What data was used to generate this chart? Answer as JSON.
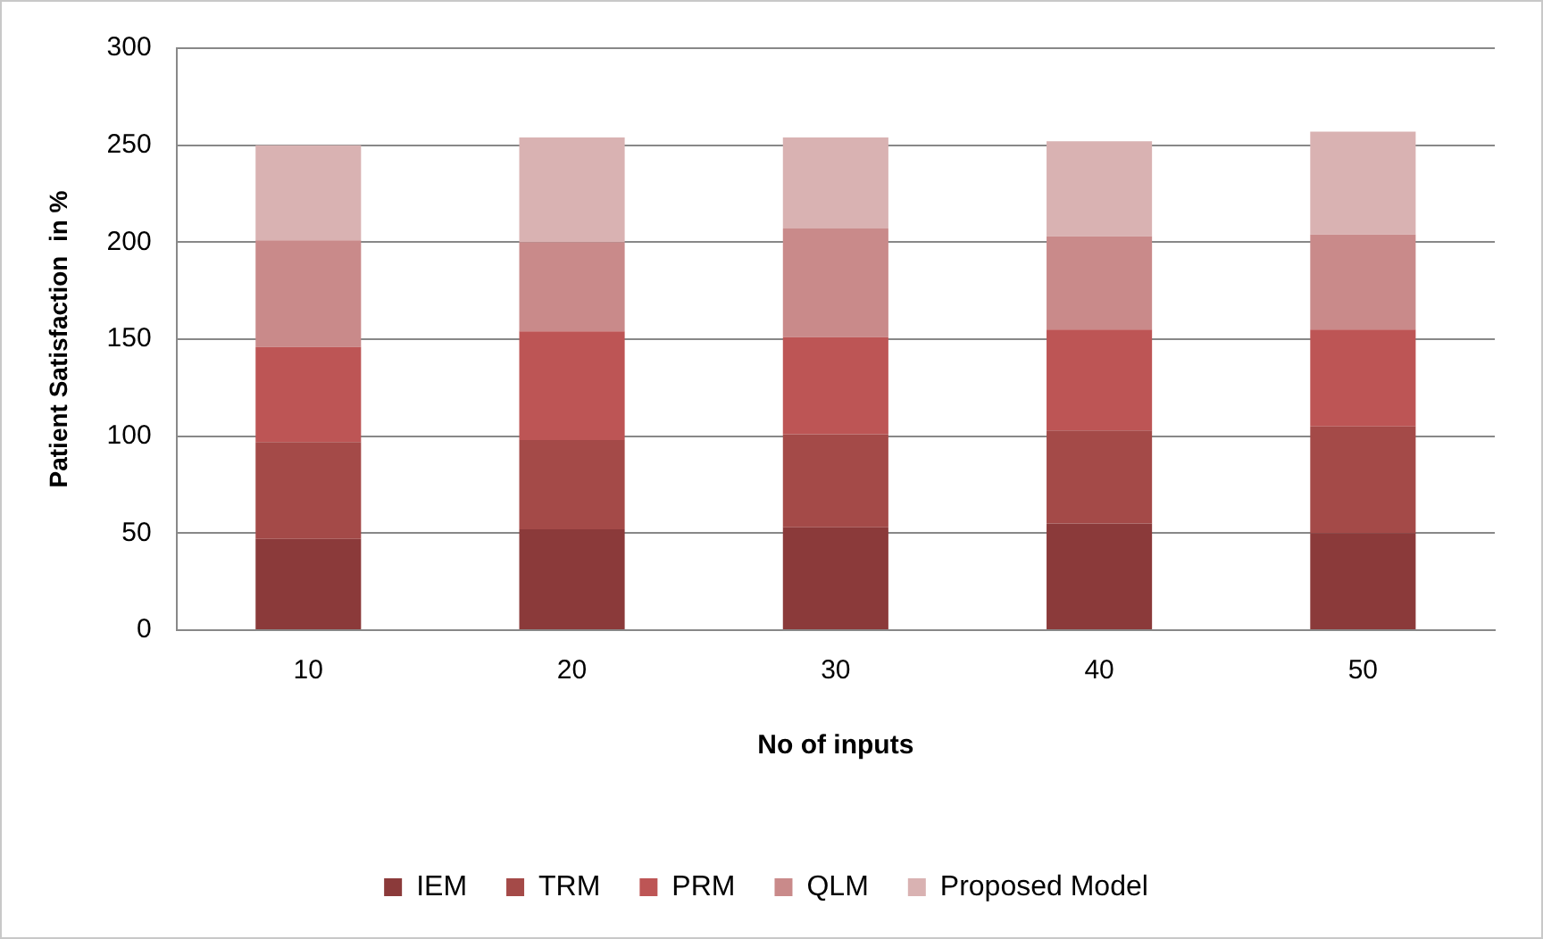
{
  "chart_data": {
    "type": "bar",
    "stacked": true,
    "xlabel": "No of inputs",
    "ylabel": "Patient Satisfaction  in %",
    "categories": [
      "10",
      "20",
      "30",
      "40",
      "50"
    ],
    "series": [
      {
        "name": "IEM",
        "color": "#8b3a3a",
        "values": [
          47,
          52,
          53,
          55,
          50
        ]
      },
      {
        "name": "TRM",
        "color": "#a44a48",
        "values": [
          50,
          46,
          48,
          48,
          55
        ]
      },
      {
        "name": "PRM",
        "color": "#bd5555",
        "values": [
          49,
          56,
          50,
          52,
          50
        ]
      },
      {
        "name": "QLM",
        "color": "#c98a8a",
        "values": [
          55,
          46,
          56,
          48,
          49
        ]
      },
      {
        "name": "Proposed Model",
        "color": "#d9b2b2",
        "values": [
          49,
          54,
          47,
          49,
          53
        ]
      }
    ],
    "ylim": [
      0,
      300
    ],
    "yticks": [
      0,
      50,
      100,
      150,
      200,
      250,
      300
    ],
    "grid": "y",
    "legend": "bottom"
  }
}
